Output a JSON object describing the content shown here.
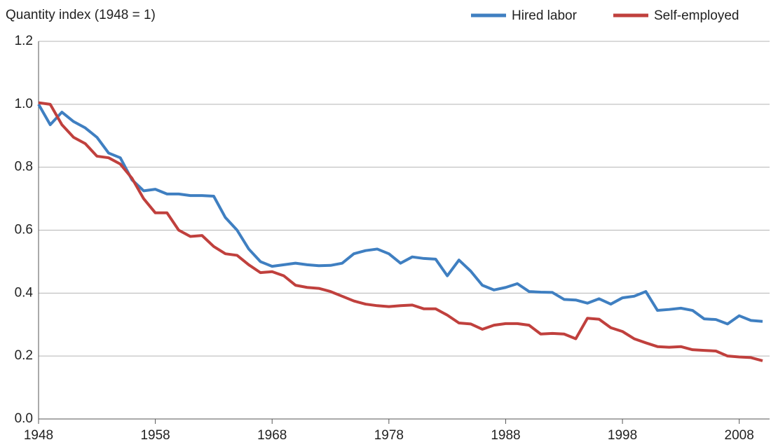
{
  "chart_data": {
    "type": "line",
    "y_label": "Quantity index (1948 = 1)",
    "x": [
      1948,
      1949,
      1950,
      1951,
      1952,
      1953,
      1954,
      1955,
      1956,
      1957,
      1958,
      1959,
      1960,
      1961,
      1962,
      1963,
      1964,
      1965,
      1966,
      1967,
      1968,
      1969,
      1970,
      1971,
      1972,
      1973,
      1974,
      1975,
      1976,
      1977,
      1978,
      1979,
      1980,
      1981,
      1982,
      1983,
      1984,
      1985,
      1986,
      1987,
      1988,
      1989,
      1990,
      1991,
      1992,
      1993,
      1994,
      1995,
      1996,
      1997,
      1998,
      1999,
      2000,
      2001,
      2002,
      2003,
      2004,
      2005,
      2006,
      2007,
      2008,
      2009,
      2010
    ],
    "series": [
      {
        "name": "Hired labor",
        "color": "#3f7fc1",
        "values": [
          1.0,
          0.935,
          0.975,
          0.945,
          0.925,
          0.895,
          0.845,
          0.83,
          0.76,
          0.725,
          0.73,
          0.715,
          0.715,
          0.71,
          0.71,
          0.708,
          0.64,
          0.6,
          0.54,
          0.5,
          0.485,
          0.49,
          0.495,
          0.49,
          0.487,
          0.488,
          0.495,
          0.525,
          0.535,
          0.54,
          0.525,
          0.495,
          0.515,
          0.51,
          0.508,
          0.455,
          0.505,
          0.47,
          0.425,
          0.41,
          0.418,
          0.43,
          0.405,
          0.403,
          0.402,
          0.38,
          0.378,
          0.368,
          0.382,
          0.365,
          0.385,
          0.39,
          0.405,
          0.345,
          0.348,
          0.352,
          0.345,
          0.318,
          0.316,
          0.302,
          0.328,
          0.313,
          0.31
        ]
      },
      {
        "name": "Self-employed",
        "color": "#c0403d",
        "values": [
          1.005,
          1.0,
          0.935,
          0.895,
          0.875,
          0.835,
          0.83,
          0.81,
          0.765,
          0.7,
          0.655,
          0.655,
          0.6,
          0.58,
          0.583,
          0.548,
          0.525,
          0.52,
          0.49,
          0.465,
          0.468,
          0.455,
          0.425,
          0.418,
          0.415,
          0.405,
          0.39,
          0.375,
          0.365,
          0.36,
          0.357,
          0.36,
          0.362,
          0.35,
          0.35,
          0.33,
          0.305,
          0.302,
          0.285,
          0.298,
          0.303,
          0.303,
          0.298,
          0.27,
          0.272,
          0.27,
          0.255,
          0.32,
          0.317,
          0.29,
          0.278,
          0.255,
          0.242,
          0.23,
          0.228,
          0.23,
          0.22,
          0.218,
          0.216,
          0.2,
          0.197,
          0.195,
          0.185
        ]
      }
    ],
    "xlim": [
      1948,
      2010.6
    ],
    "xticks": [
      1948,
      1958,
      1968,
      1978,
      1988,
      1998,
      2008
    ],
    "ylim": [
      0,
      1.2
    ],
    "yticks": [
      {
        "value": 0,
        "label": "0.0"
      },
      0.2,
      0.4,
      0.6,
      0.8,
      {
        "value": 1,
        "label": "1.0"
      },
      1.2
    ],
    "grid": true,
    "legend": "top-right"
  }
}
